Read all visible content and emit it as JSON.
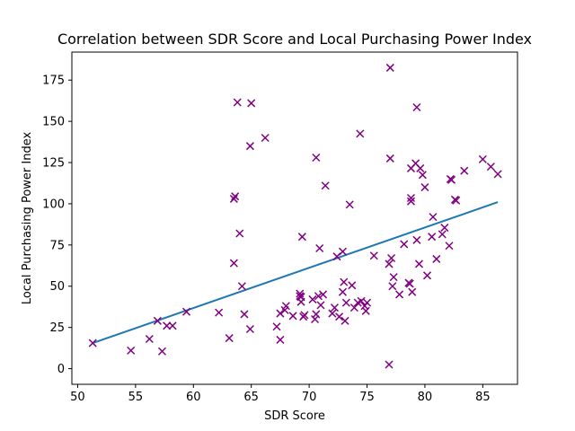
{
  "chart_data": {
    "type": "scatter",
    "title": "Correlation between SDR Score and Local Purchasing Power Index",
    "xlabel": "SDR Score",
    "ylabel": "Local Purchasing Power Index",
    "xlim": [
      49.5,
      88.0
    ],
    "ylim": [
      -9.5,
      192.0
    ],
    "xticks": [
      50,
      55,
      60,
      65,
      70,
      75,
      80,
      85
    ],
    "yticks": [
      0,
      25,
      50,
      75,
      100,
      125,
      150,
      175
    ],
    "grid": false,
    "marker": "x",
    "marker_color": "#800080",
    "line_color": "#1f77b4",
    "trend_line": {
      "x": [
        51.3,
        86.3
      ],
      "y": [
        15.5,
        101.0
      ]
    },
    "points": [
      [
        51.3,
        15.5
      ],
      [
        54.6,
        11.0
      ],
      [
        56.2,
        18.0
      ],
      [
        56.9,
        29.0
      ],
      [
        57.3,
        10.5
      ],
      [
        57.7,
        26.0
      ],
      [
        58.2,
        26.0
      ],
      [
        59.4,
        34.5
      ],
      [
        62.2,
        34.0
      ],
      [
        63.1,
        18.5
      ],
      [
        63.5,
        64.0
      ],
      [
        63.5,
        103.0
      ],
      [
        63.6,
        104.5
      ],
      [
        63.8,
        161.5
      ],
      [
        64.0,
        82.0
      ],
      [
        64.2,
        50.0
      ],
      [
        64.4,
        33.0
      ],
      [
        64.9,
        24.0
      ],
      [
        64.9,
        135.0
      ],
      [
        65.0,
        161.0
      ],
      [
        66.2,
        140.0
      ],
      [
        67.2,
        25.5
      ],
      [
        67.5,
        17.5
      ],
      [
        67.5,
        33.5
      ],
      [
        67.9,
        35.5
      ],
      [
        68.0,
        38.0
      ],
      [
        68.6,
        32.0
      ],
      [
        69.2,
        44.0
      ],
      [
        69.2,
        45.5
      ],
      [
        69.3,
        40.5
      ],
      [
        69.3,
        43.5
      ],
      [
        69.4,
        80.0
      ],
      [
        69.5,
        31.5
      ],
      [
        69.6,
        32.5
      ],
      [
        70.3,
        42.0
      ],
      [
        70.5,
        30.0
      ],
      [
        70.6,
        33.0
      ],
      [
        70.6,
        128.0
      ],
      [
        70.8,
        44.0
      ],
      [
        70.9,
        73.0
      ],
      [
        71.0,
        38.5
      ],
      [
        71.2,
        45.0
      ],
      [
        71.4,
        111.0
      ],
      [
        72.0,
        33.5
      ],
      [
        72.2,
        37.0
      ],
      [
        72.4,
        68.0
      ],
      [
        72.6,
        31.5
      ],
      [
        72.9,
        71.0
      ],
      [
        72.9,
        46.5
      ],
      [
        73.0,
        52.5
      ],
      [
        73.1,
        29.0
      ],
      [
        73.2,
        40.0
      ],
      [
        73.5,
        99.5
      ],
      [
        73.7,
        50.5
      ],
      [
        73.9,
        37.0
      ],
      [
        74.2,
        40.0
      ],
      [
        74.4,
        142.5
      ],
      [
        74.5,
        41.0
      ],
      [
        74.8,
        38.0
      ],
      [
        74.9,
        35.0
      ],
      [
        75.0,
        40.0
      ],
      [
        75.6,
        68.5
      ],
      [
        76.9,
        63.5
      ],
      [
        76.9,
        2.5
      ],
      [
        77.0,
        182.5
      ],
      [
        77.0,
        127.5
      ],
      [
        77.1,
        67.0
      ],
      [
        77.2,
        50.0
      ],
      [
        77.3,
        55.5
      ],
      [
        77.8,
        45.0
      ],
      [
        78.2,
        75.5
      ],
      [
        78.6,
        52.0
      ],
      [
        78.7,
        51.5
      ],
      [
        78.8,
        101.5
      ],
      [
        78.8,
        103.5
      ],
      [
        78.8,
        121.5
      ],
      [
        78.9,
        46.5
      ],
      [
        79.2,
        124.5
      ],
      [
        79.3,
        78.0
      ],
      [
        79.3,
        158.5
      ],
      [
        79.5,
        63.5
      ],
      [
        79.6,
        121.5
      ],
      [
        79.8,
        117.5
      ],
      [
        80.0,
        110.0
      ],
      [
        80.2,
        56.5
      ],
      [
        80.6,
        80.0
      ],
      [
        80.7,
        92.0
      ],
      [
        81.0,
        66.5
      ],
      [
        81.5,
        81.5
      ],
      [
        81.7,
        85.5
      ],
      [
        82.1,
        74.5
      ],
      [
        82.2,
        115.0
      ],
      [
        82.3,
        114.5
      ],
      [
        82.6,
        102.5
      ],
      [
        82.7,
        102.0
      ],
      [
        83.4,
        120.0
      ],
      [
        85.0,
        127.0
      ],
      [
        85.7,
        122.5
      ],
      [
        86.3,
        118.0
      ]
    ]
  }
}
